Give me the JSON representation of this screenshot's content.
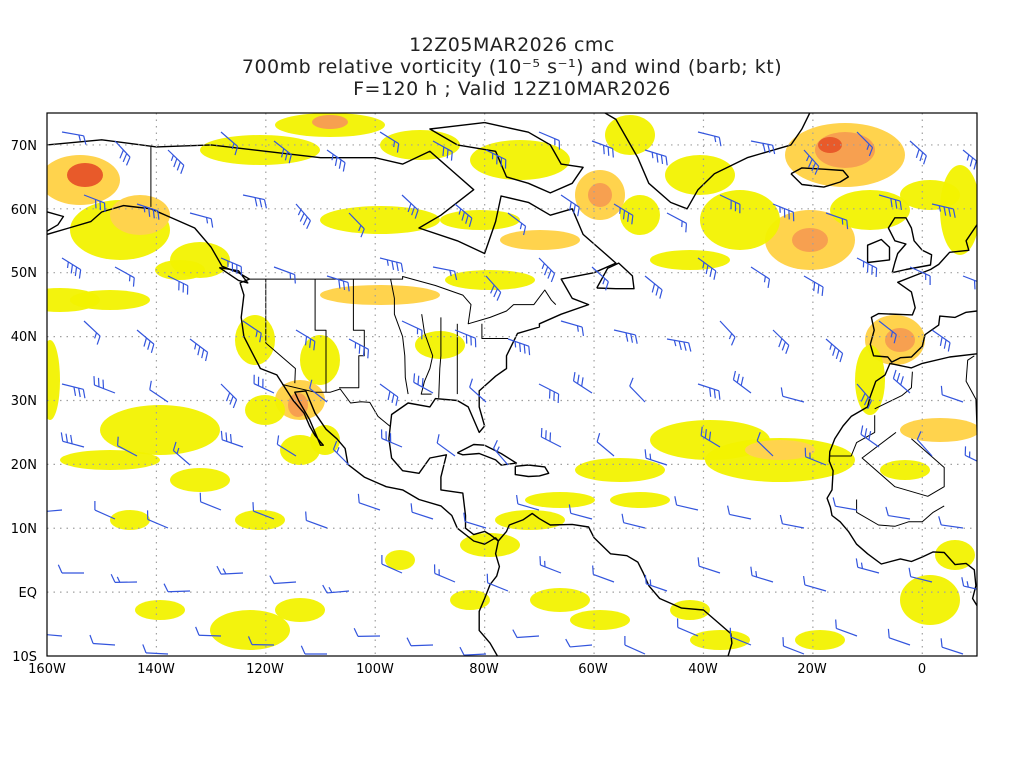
{
  "title": {
    "line1": "12Z05MAR2026 cmc",
    "line2": "700mb relative vorticity (10⁻⁵ s⁻¹) and wind (barb; kt)",
    "line3": "F=120 h ; Valid 12Z10MAR2026"
  },
  "axes": {
    "lon_labels": [
      "160W",
      "140W",
      "120W",
      "100W",
      "80W",
      "60W",
      "40W",
      "20W",
      "0"
    ],
    "lat_labels": [
      "70N",
      "60N",
      "50N",
      "40N",
      "30N",
      "20N",
      "10N",
      "EQ",
      "10S"
    ]
  },
  "map": {
    "lon_range": [
      -160,
      10
    ],
    "lat_range": [
      -10,
      75
    ],
    "grid": "dotted",
    "colors": {
      "shade_low": "#f2f200",
      "shade_mid": "#ffd34d",
      "shade_high": "#f7a050",
      "shade_max": "#e85a2a",
      "barb": "#3355dd",
      "coast": "#000000",
      "grid": "#a0a0a0"
    }
  }
}
